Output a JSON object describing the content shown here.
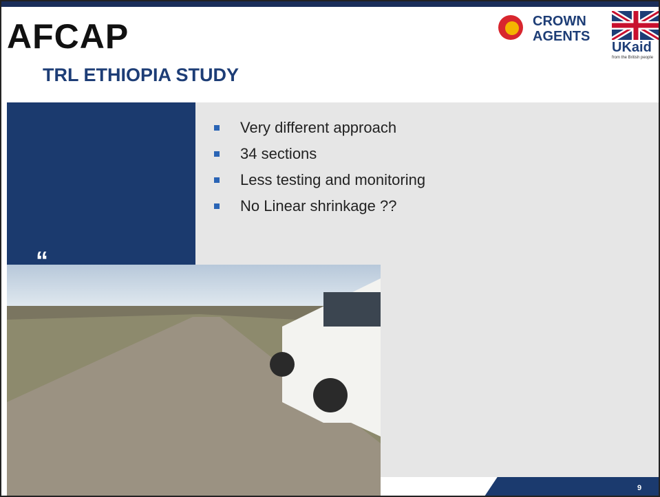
{
  "header": {
    "logo": "AFCAP",
    "title": "TRL ETHIOPIA STUDY",
    "partner_1": "CROWN\nAGENTS",
    "partner_2": "UKaid",
    "partner_2_sub": "from the British people"
  },
  "bullets": [
    "Very different approach",
    "34 sections",
    "Less testing and monitoring",
    "No Linear shrinkage ??"
  ],
  "quote_mark": "“",
  "page_number": "9"
}
